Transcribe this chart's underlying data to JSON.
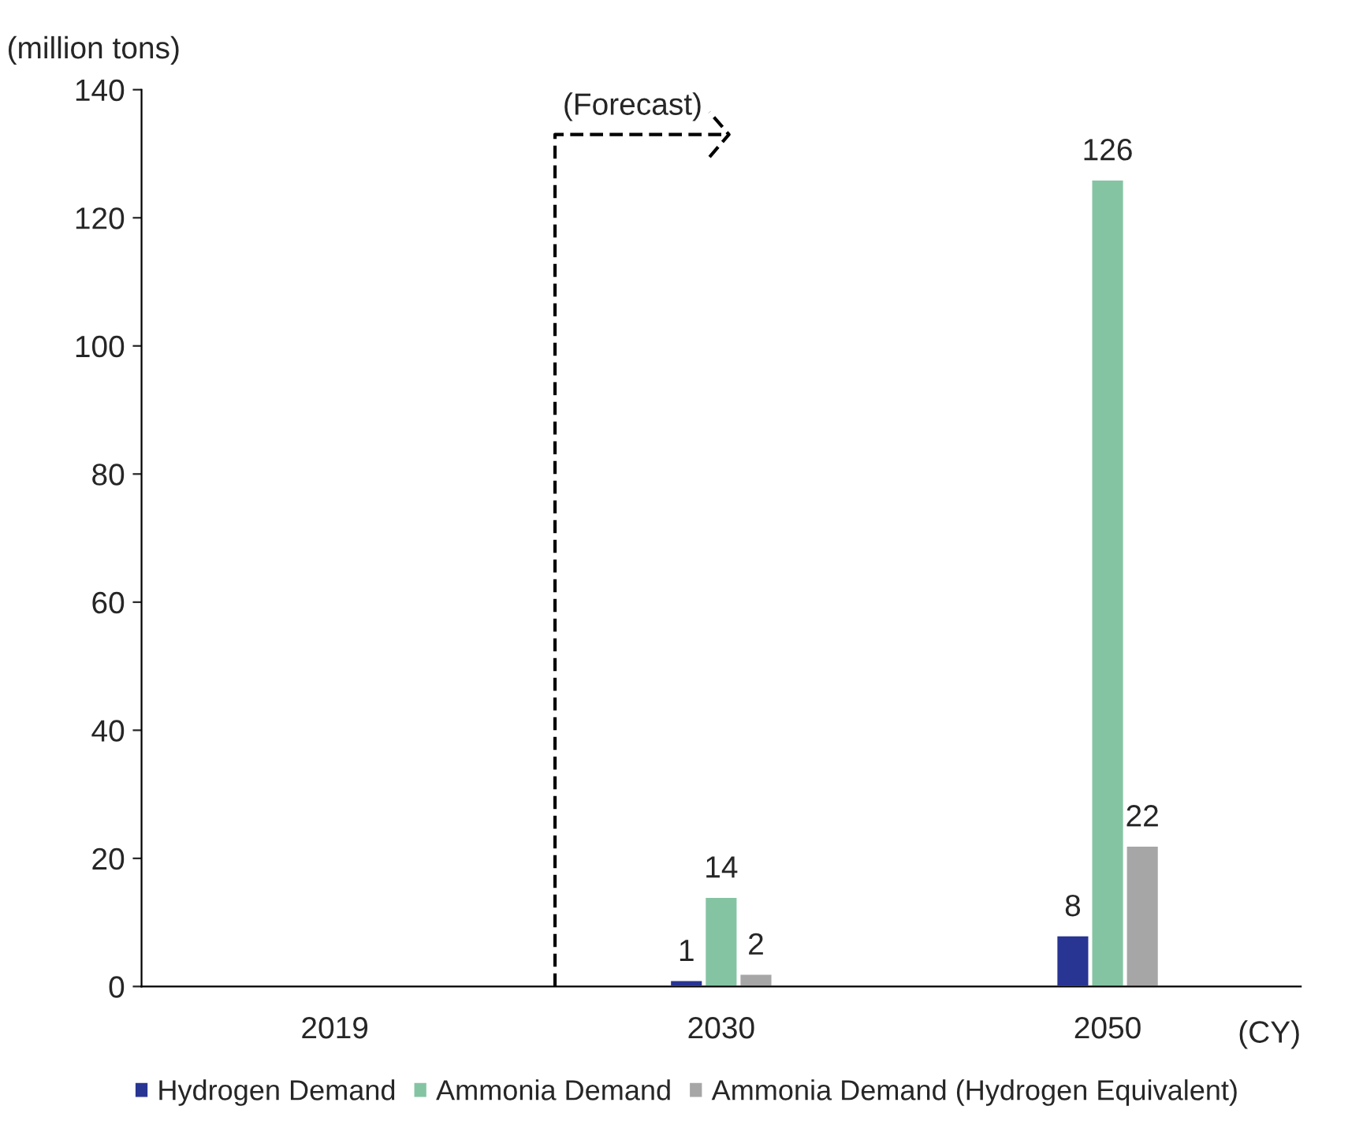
{
  "chart_data": {
    "type": "bar",
    "ylabel": "(million tons)",
    "xlabel": "(CY)",
    "categories": [
      "2019",
      "2030",
      "2050"
    ],
    "series": [
      {
        "name": "Hydrogen Demand",
        "color": "#283593",
        "values": [
          null,
          1,
          8
        ]
      },
      {
        "name": "Ammonia Demand",
        "color": "#85c4a3",
        "values": [
          null,
          14,
          126
        ]
      },
      {
        "name": "Ammonia Demand (Hydrogen Equivalent)",
        "color": "#a6a6a6",
        "values": [
          null,
          2,
          22
        ]
      }
    ],
    "ylim": [
      0,
      140
    ],
    "yticks": [
      0,
      20,
      40,
      60,
      80,
      100,
      120,
      140
    ],
    "data_labels": true,
    "grid": false,
    "legend": "bottom",
    "annotations": [
      "(Forecast)"
    ]
  }
}
